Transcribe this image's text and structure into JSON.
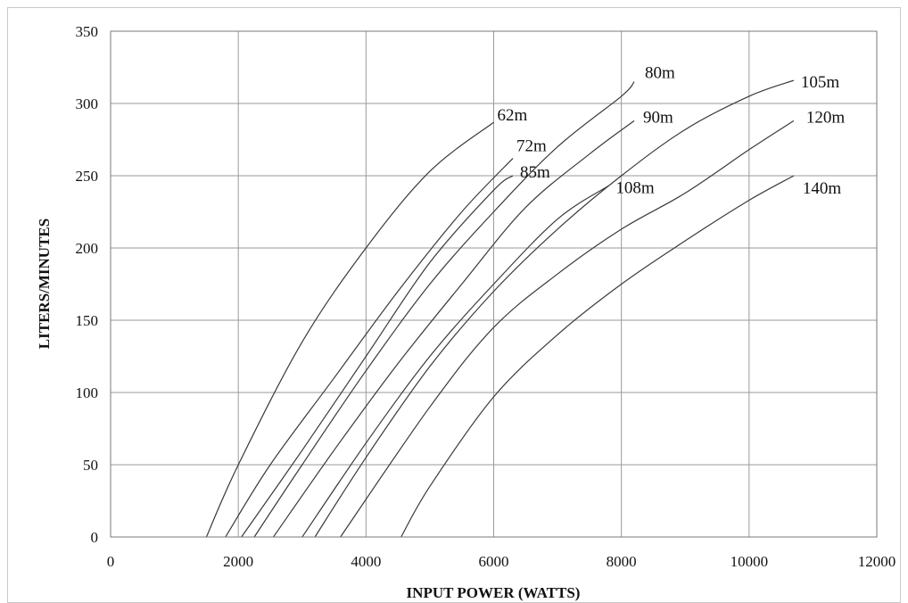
{
  "chart_data": {
    "type": "line",
    "title": "",
    "xlabel": "INPUT POWER (WATTS)",
    "ylabel": "LITERS/MINUTES",
    "xlim": [
      0,
      12000
    ],
    "ylim": [
      0,
      350
    ],
    "x_ticks": [
      0,
      2000,
      4000,
      6000,
      8000,
      10000,
      12000
    ],
    "y_ticks": [
      0,
      50,
      100,
      150,
      200,
      250,
      300,
      350
    ],
    "grid": true,
    "series": [
      {
        "name": "62m",
        "x0": 1500,
        "x": [
          1500,
          2000,
          3000,
          4000,
          5000,
          6000
        ],
        "y": [
          0,
          50,
          135,
          200,
          253,
          287
        ]
      },
      {
        "name": "72m",
        "x0": 1800,
        "x": [
          1800,
          2500,
          3500,
          4500,
          5500,
          6300
        ],
        "y": [
          0,
          50,
          110,
          170,
          225,
          262
        ]
      },
      {
        "name": "85m",
        "x0": 2050,
        "x": [
          2050,
          3000,
          4000,
          5000,
          6000,
          6300
        ],
        "y": [
          0,
          60,
          125,
          190,
          240,
          250
        ]
      },
      {
        "name": "80m",
        "x0": 2250,
        "x": [
          2250,
          3000,
          4000,
          5000,
          6000,
          7000,
          8000,
          8200
        ],
        "y": [
          0,
          50,
          115,
          175,
          225,
          270,
          305,
          315
        ]
      },
      {
        "name": "90m",
        "x0": 2550,
        "x": [
          2550,
          3500,
          4500,
          5500,
          6500,
          7500,
          8200
        ],
        "y": [
          0,
          60,
          120,
          175,
          228,
          265,
          288
        ]
      },
      {
        "name": "108m",
        "x0": 3000,
        "x": [
          3000,
          4000,
          5000,
          6000,
          7000,
          7800
        ],
        "y": [
          0,
          65,
          125,
          175,
          220,
          243
        ]
      },
      {
        "name": "105m",
        "x0": 3200,
        "x": [
          3200,
          4000,
          5000,
          6000,
          7000,
          8000,
          9000,
          10000,
          10700
        ],
        "y": [
          0,
          55,
          118,
          170,
          213,
          250,
          282,
          305,
          316
        ]
      },
      {
        "name": "120m",
        "x0": 3600,
        "x": [
          3600,
          5000,
          6000,
          7000,
          8000,
          9000,
          10000,
          10700
        ],
        "y": [
          0,
          90,
          145,
          182,
          213,
          238,
          268,
          288
        ]
      },
      {
        "name": "140m",
        "x0": 4550,
        "x": [
          4550,
          5000,
          6000,
          7000,
          8000,
          9000,
          10000,
          10700
        ],
        "y": [
          0,
          35,
          97,
          140,
          175,
          205,
          233,
          250
        ]
      }
    ]
  }
}
